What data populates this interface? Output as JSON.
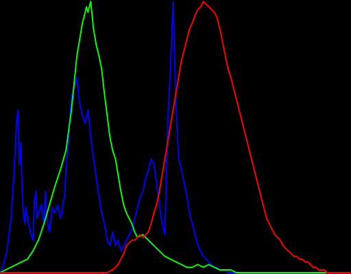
{
  "chart_data": {
    "type": "line",
    "xlim": [
      0,
      255
    ],
    "ylim": [
      0,
      1
    ],
    "grid": false,
    "background": "#000000",
    "series": [
      {
        "color": "#0000ff",
        "x": [
          0,
          2,
          5,
          8,
          10,
          12,
          13,
          14,
          15,
          16,
          17,
          18,
          19,
          20,
          22,
          24,
          25,
          26,
          27,
          28,
          30,
          32,
          33,
          34,
          36,
          38,
          40,
          42,
          44,
          45,
          46,
          47,
          48,
          50,
          52,
          54,
          56,
          58,
          60,
          62,
          64,
          66,
          68,
          70,
          72,
          74,
          76,
          78,
          80,
          82,
          84,
          86,
          88,
          90,
          92,
          94,
          96,
          98,
          100,
          102,
          104,
          106,
          108,
          110,
          112,
          114,
          116,
          118,
          120,
          122,
          124,
          126,
          128,
          130,
          132,
          134,
          136,
          138,
          140,
          142,
          144,
          146,
          148,
          150,
          152,
          154,
          156,
          158,
          160,
          162,
          164,
          166,
          168,
          170,
          172,
          174,
          176,
          178,
          180,
          182,
          184,
          186,
          188,
          190,
          192,
          194,
          196,
          198,
          200,
          202,
          204,
          206,
          208,
          210,
          212,
          214,
          216,
          218,
          220,
          222,
          224,
          226,
          228,
          230,
          232,
          234,
          236,
          238,
          240,
          242,
          244,
          246,
          248,
          250,
          252,
          255
        ],
        "y": [
          0.0,
          0.02,
          0.08,
          0.2,
          0.35,
          0.55,
          0.6,
          0.4,
          0.48,
          0.32,
          0.22,
          0.18,
          0.24,
          0.2,
          0.15,
          0.12,
          0.26,
          0.3,
          0.2,
          0.22,
          0.25,
          0.18,
          0.3,
          0.2,
          0.15,
          0.24,
          0.22,
          0.25,
          0.2,
          0.22,
          0.26,
          0.28,
          0.38,
          0.5,
          0.65,
          0.68,
          0.72,
          0.62,
          0.58,
          0.55,
          0.6,
          0.5,
          0.42,
          0.35,
          0.28,
          0.22,
          0.18,
          0.12,
          0.1,
          0.15,
          0.1,
          0.12,
          0.08,
          0.1,
          0.12,
          0.14,
          0.16,
          0.2,
          0.24,
          0.28,
          0.3,
          0.35,
          0.38,
          0.42,
          0.4,
          0.33,
          0.25,
          0.18,
          0.14,
          0.55,
          0.75,
          1.0,
          0.62,
          0.42,
          0.38,
          0.33,
          0.28,
          0.22,
          0.18,
          0.14,
          0.1,
          0.08,
          0.06,
          0.05,
          0.04,
          0.03,
          0.02,
          0.02,
          0.01,
          0.01,
          0.01,
          0.0,
          0.0,
          0.0,
          0.0,
          0.0,
          0.0,
          0.0,
          0.0,
          0.0,
          0.0,
          0.0,
          0.0,
          0.0,
          0.0,
          0.0,
          0.0,
          0.0,
          0.0,
          0.0,
          0.0,
          0.0,
          0.0,
          0.0,
          0.0,
          0.0,
          0.0,
          0.0,
          0.0,
          0.0,
          0.0,
          0.0,
          0.0,
          0.0,
          0.0,
          0.0,
          0.0,
          0.0,
          0.0,
          0.0,
          0.0,
          0.0,
          0.0,
          0.0,
          0.0,
          0.0
        ]
      },
      {
        "color": "#00ff00",
        "x": [
          0,
          4,
          8,
          12,
          16,
          20,
          24,
          28,
          32,
          36,
          40,
          44,
          48,
          52,
          56,
          60,
          63,
          64,
          66,
          68,
          70,
          72,
          74,
          76,
          78,
          80,
          82,
          84,
          86,
          88,
          90,
          92,
          94,
          96,
          98,
          100,
          104,
          108,
          112,
          116,
          120,
          124,
          128,
          132,
          136,
          140,
          144,
          148,
          152,
          156,
          160,
          164,
          168,
          172,
          176,
          180,
          184,
          188,
          192,
          196,
          200,
          204,
          208,
          212,
          216,
          220,
          224,
          228,
          232,
          236,
          240,
          244,
          248,
          252,
          255
        ],
        "y": [
          0.0,
          0.01,
          0.02,
          0.03,
          0.04,
          0.05,
          0.08,
          0.12,
          0.18,
          0.25,
          0.32,
          0.38,
          0.45,
          0.6,
          0.8,
          0.92,
          0.98,
          0.96,
          1.0,
          0.9,
          0.84,
          0.8,
          0.75,
          0.66,
          0.58,
          0.5,
          0.45,
          0.42,
          0.36,
          0.3,
          0.25,
          0.22,
          0.2,
          0.18,
          0.15,
          0.13,
          0.14,
          0.12,
          0.1,
          0.08,
          0.06,
          0.05,
          0.04,
          0.03,
          0.02,
          0.02,
          0.03,
          0.02,
          0.03,
          0.02,
          0.01,
          0.01,
          0.01,
          0.0,
          0.0,
          0.0,
          0.0,
          0.0,
          0.0,
          0.0,
          0.0,
          0.0,
          0.0,
          0.0,
          0.0,
          0.0,
          0.0,
          0.0,
          0.0,
          0.0,
          0.0,
          0.0,
          0.0,
          0.0,
          0.0
        ]
      },
      {
        "color": "#ff0000",
        "x": [
          0,
          10,
          20,
          30,
          40,
          50,
          60,
          70,
          78,
          82,
          86,
          88,
          90,
          92,
          96,
          98,
          100,
          102,
          104,
          106,
          108,
          110,
          112,
          114,
          116,
          118,
          120,
          122,
          124,
          126,
          128,
          130,
          132,
          134,
          136,
          138,
          140,
          142,
          144,
          146,
          148,
          150,
          152,
          154,
          156,
          158,
          160,
          162,
          164,
          166,
          168,
          170,
          172,
          174,
          176,
          178,
          180,
          182,
          184,
          186,
          188,
          190,
          192,
          194,
          196,
          198,
          200,
          202,
          204,
          206,
          208,
          210,
          212,
          214,
          216,
          218,
          220,
          222,
          224,
          226,
          228,
          230,
          232,
          234,
          236,
          238,
          240,
          242,
          244,
          246,
          248,
          250,
          252,
          255
        ],
        "y": [
          0.0,
          0.0,
          0.0,
          0.0,
          0.0,
          0.0,
          0.0,
          0.0,
          0.0,
          0.01,
          0.03,
          0.05,
          0.07,
          0.1,
          0.12,
          0.12,
          0.13,
          0.14,
          0.13,
          0.14,
          0.15,
          0.18,
          0.22,
          0.25,
          0.3,
          0.36,
          0.42,
          0.48,
          0.54,
          0.6,
          0.66,
          0.72,
          0.78,
          0.82,
          0.86,
          0.9,
          0.92,
          0.95,
          0.97,
          0.98,
          1.0,
          0.99,
          0.98,
          0.97,
          0.96,
          0.94,
          0.9,
          0.85,
          0.8,
          0.75,
          0.72,
          0.68,
          0.64,
          0.6,
          0.56,
          0.52,
          0.48,
          0.44,
          0.4,
          0.36,
          0.32,
          0.28,
          0.24,
          0.2,
          0.18,
          0.16,
          0.14,
          0.13,
          0.12,
          0.1,
          0.09,
          0.08,
          0.07,
          0.06,
          0.06,
          0.05,
          0.05,
          0.04,
          0.04,
          0.03,
          0.02,
          0.02,
          0.01,
          0.01,
          0.01,
          0.0,
          0.0,
          0.0,
          0.0,
          0.0,
          0.0,
          0.0,
          0.0,
          0.0
        ]
      }
    ]
  }
}
